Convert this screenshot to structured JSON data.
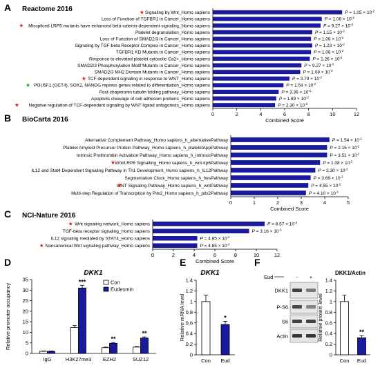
{
  "chart_data": [
    {
      "panel": "A",
      "type": "bar",
      "orientation": "horizontal",
      "title": "Reactome 2016",
      "xlabel": "Combined Score",
      "xlim": [
        0,
        12
      ],
      "xticks": [
        0,
        2,
        4,
        6,
        8,
        10,
        12
      ],
      "color": "#1a1a9e",
      "categories": [
        "Signaling by Wnt_Homo sapiens",
        "Loss of Function of TGFBR1 in Cancer_Homo sapiens",
        "Misspliced LRP5 mutants have enhanced beta-catenin-dependent signaling_Homo sapiens",
        "Platelet degranulation_Homo sapiens",
        "Loss of Function of SMAD2/3 in Cancer_Homo sapiens",
        "Signaling by TGF-beta Receptor Complex in Cancer_Homo sapiens",
        "TGFBR1 KD Mutants in Cancer_Homo sapiens",
        "Response to elevated platelet cytosolic Ca2+_Homo sapiens",
        "SMAD2/3 Phosphorylation Motif Mutants in Cancer_Homo sapiens",
        "SMAD2/3 MH2 Domain Mutants in Cancer_Homo sapiens",
        "TCF dependent signaling in response to WNT_Homo sapiens",
        "POU5F1 (OCT4), SOX2, NANOG repress genes related to differentiation_Homo sapiens",
        "Post-chaperonin tubulin folding pathway_Homo sapiens",
        "Apoptotic cleavage of cell adhesion  proteins_Homo sapiens",
        "Negative regulation of TCF-dependent signaling by WNT ligand antagonists_Homo sapiens"
      ],
      "values": [
        10.8,
        9.1,
        9.0,
        8.3,
        8.2,
        8.3,
        8.2,
        8.1,
        7.4,
        7.3,
        6.4,
        5.9,
        5.5,
        5.3,
        5.2
      ],
      "p_labels": [
        [
          "1.05 × 10",
          "-2"
        ],
        [
          "1.08 × 10",
          "-2"
        ],
        [
          "9.27 × 10",
          "-3"
        ],
        [
          "1.15 × 10",
          "-2"
        ],
        [
          "1.08 × 10",
          "-2"
        ],
        [
          "1.23 × 10",
          "-2"
        ],
        [
          "1.08 × 10",
          "-2"
        ],
        [
          "1.26 × 10",
          "-2"
        ],
        [
          "9.27 × 10",
          "-3"
        ],
        [
          "1.08 × 10",
          "-2"
        ],
        [
          "3.79 × 10",
          "-2"
        ],
        [
          "1.54 × 10",
          "-2"
        ],
        [
          "3.36 × 10",
          "-2"
        ],
        [
          "1.69 × 10",
          "-2"
        ],
        [
          "2.30 × 10",
          "-2"
        ]
      ],
      "star_colors": [
        "#e02020",
        null,
        "#e02020",
        null,
        null,
        null,
        null,
        null,
        null,
        null,
        "#e02020",
        "#2a9a2a",
        null,
        null,
        "#e02020"
      ]
    },
    {
      "panel": "B",
      "type": "bar",
      "orientation": "horizontal",
      "title": "BioCarta 2016",
      "xlabel": "Combined Score",
      "xlim": [
        0,
        5
      ],
      "xticks": [
        0,
        1,
        2,
        3,
        4,
        5
      ],
      "color": "#1a1a9e",
      "categories": [
        "Alternative Complement Pathway_Homo sapiens_h_alternativePathway",
        "Platelet Amyloid Precursor Protein Pathway_Homo sapiens_h_plateletAppPathway",
        "Intrinsic Prothrombin Activation Pathway_Homo sapiens_h_intrinsicPathway",
        "Wnt/LRP6 Signalling_Homo sapiens_h_wnt-lrp6Pathway",
        "IL12 and Stat4 Dependent Signaling Pathway in Th1 Development_Homo sapiens_h_IL12Pathway",
        "Segmentation Clock_Homo sapiens_h_hesPathway",
        "WNT Signaling Pathway_Homo sapiens_h_wntPathway",
        "Multi-step Regulation of Transcription by Pitx2_Homo sapiens_h_pitx2Pathway"
      ],
      "values": [
        4.2,
        4.1,
        4.1,
        3.8,
        3.6,
        3.4,
        3.3,
        3.2
      ],
      "p_labels": [
        [
          "1.54 × 10",
          "-2"
        ],
        [
          "2.15 × 10",
          "-2"
        ],
        [
          "3.51 × 10",
          "-2"
        ],
        [
          "1.08 × 10",
          "-2"
        ],
        [
          "2.30 × 10",
          "-2"
        ],
        [
          "3.66 × 10",
          "-2"
        ],
        [
          "4.55 × 10",
          "-2"
        ],
        [
          "4.10 × 10",
          "-2"
        ]
      ],
      "star_colors": [
        null,
        null,
        null,
        "#e02020",
        null,
        null,
        "#e02020",
        null
      ]
    },
    {
      "panel": "C",
      "type": "bar",
      "orientation": "horizontal",
      "title": "NCI-Nature 2016",
      "xlabel": "Combined Score",
      "xlim": [
        0,
        12
      ],
      "xticks": [
        0,
        2,
        4,
        6,
        8,
        10,
        12
      ],
      "color": "#1a1a9e",
      "categories": [
        "Wnt signaling network_Homo sapiens",
        "TGF-beta receptor signaling_Homo sapiens",
        "IL12 signaling mediated by STAT4_Homo sapiens",
        "Noncanonical Wnt signaling pathway_Homo sapiens"
      ],
      "values": [
        10.8,
        9.3,
        4.3,
        4.3
      ],
      "p_labels": [
        [
          "8.57 × 10",
          "-4"
        ],
        [
          "3.16 × 10",
          "-3"
        ],
        [
          "4.85 × 10",
          "-2"
        ],
        [
          "4.85 × 10",
          "-2"
        ]
      ],
      "star_colors": [
        "#e02020",
        null,
        null,
        "#e02020"
      ]
    },
    {
      "panel": "D",
      "type": "bar",
      "title": "DKK1",
      "ylabel": "Relative promoter occupancy",
      "ylim": [
        0,
        35
      ],
      "yticks": [
        0,
        5,
        10,
        15,
        20,
        25,
        30,
        35
      ],
      "categories": [
        "IgG",
        "H3K27me3",
        "EZH2",
        "SUZ12"
      ],
      "series": [
        {
          "name": "Con",
          "color": "#ffffff",
          "values": [
            1.0,
            12.3,
            2.7,
            3.0
          ],
          "errors": [
            0.2,
            0.9,
            0.3,
            0.3
          ]
        },
        {
          "name": "Eudesmin",
          "color": "#1a1a9e",
          "values": [
            1.0,
            31.0,
            4.8,
            7.3
          ],
          "errors": [
            0.2,
            1.3,
            0.4,
            0.5
          ]
        }
      ],
      "significance": [
        "",
        "***",
        "**",
        "**"
      ],
      "legend": "top-right"
    },
    {
      "panel": "E",
      "type": "bar",
      "title": "DKK1",
      "ylabel": "Relative mRNA level",
      "ylim": [
        0,
        1.4
      ],
      "yticks": [
        "0",
        "0.2",
        "0.4",
        "0.6",
        "0.8",
        "1",
        "1.2",
        "1.4"
      ],
      "categories": [
        "Con",
        "Eud"
      ],
      "values": [
        1.0,
        0.57
      ],
      "errors": [
        0.12,
        0.06
      ],
      "colors": [
        "#ffffff",
        "#1a1a9e"
      ],
      "significance": [
        "",
        "*"
      ]
    },
    {
      "panel": "F",
      "type": "bar",
      "title": "DKK1/Actin",
      "ylabel": "Relative protein level",
      "ylim": [
        0,
        1.4
      ],
      "yticks": [
        "0",
        "0.2",
        "0.4",
        "0.6",
        "0.8",
        "1",
        "1.2",
        "1.4"
      ],
      "categories": [
        "Con",
        "Eud"
      ],
      "values": [
        1.0,
        0.32
      ],
      "errors": [
        0.12,
        0.04
      ],
      "colors": [
        "#ffffff",
        "#1a1a9e"
      ],
      "significance": [
        "",
        "**"
      ]
    }
  ],
  "western": {
    "panel": "F",
    "header_label": "Eud",
    "lane_labels": [
      "-",
      "+"
    ],
    "rows": [
      "DKK1",
      "P-S6",
      "S6",
      "Actin"
    ]
  },
  "p_prefix": "P"
}
